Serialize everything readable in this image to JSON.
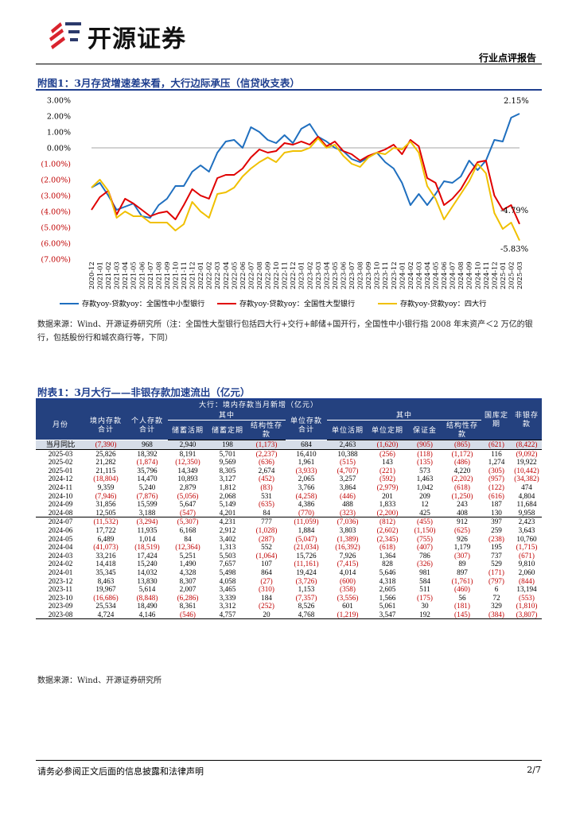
{
  "header": {
    "brand": "开源证券",
    "report_type": "行业点评报告"
  },
  "figure": {
    "title": "附图1：3月存贷增速差来看，大行边际承压（信贷收支表）",
    "source": "数据来源：Wind、开源证券研究所（注：全国性大型银行包括四大行+交行+邮储+国开行，全国性中小银行指 2008 年末资产＜2 万亿的银行，包括股份行和城农商行等，下同）"
  },
  "chart_data": {
    "type": "line",
    "x": [
      "2020-12",
      "2021-01",
      "2021-02",
      "2021-03",
      "2021-04",
      "2021-05",
      "2021-06",
      "2021-07",
      "2021-08",
      "2021-09",
      "2021-10",
      "2021-11",
      "2021-12",
      "2022-01",
      "2022-02",
      "2022-03",
      "2022-04",
      "2022-05",
      "2022-06",
      "2022-07",
      "2022-08",
      "2022-09",
      "2022-10",
      "2022-11",
      "2022-12",
      "2023-01",
      "2023-02",
      "2023-03",
      "2023-04",
      "2023-05",
      "2023-06",
      "2023-07",
      "2023-08",
      "2023-09",
      "2023-10",
      "2023-11",
      "2023-12",
      "2024-01",
      "2024-02",
      "2024-03",
      "2024-04",
      "2024-05",
      "2024-06",
      "2024-07",
      "2024-08",
      "2024-09",
      "2024-10",
      "2024-11",
      "2024-12",
      "2025-01",
      "2025-02",
      "2025-03"
    ],
    "ylim": [
      -7,
      3
    ],
    "yticks": [
      "3.00%",
      "2.00%",
      "1.00%",
      "0.00%",
      "(1.00%)",
      "(2.00%)",
      "(3.00%)",
      "(4.00%)",
      "(5.00%)",
      "(6.00%)",
      "(7.00%)"
    ],
    "series": [
      {
        "name": "存款yoy-贷款yoy：全国性中小型银行",
        "color": "#1f6fbf",
        "values": [
          -2.5,
          -2.2,
          -3.0,
          -3.9,
          -3.7,
          -3.5,
          -4.3,
          -4.4,
          -3.6,
          -3.2,
          -2.4,
          -2.4,
          -1.5,
          -1.1,
          -1.5,
          -0.3,
          0.4,
          0.5,
          0.0,
          1.3,
          1.0,
          0.5,
          0.3,
          0.8,
          0.3,
          1.2,
          1.5,
          0.7,
          0.4,
          0.0,
          -0.2,
          -0.7,
          -0.9,
          -0.6,
          -0.3,
          -0.9,
          -1.3,
          -2.2,
          -3.6,
          -2.9,
          -3.6,
          -2.9,
          -2.1,
          -2.2,
          -1.8,
          -0.8,
          -1.4,
          -0.8,
          0.5,
          0.4,
          1.9,
          2.15
        ]
      },
      {
        "name": "存款yoy-贷款yoy：全国性大型银行",
        "color": "#e00000",
        "values": [
          -3.9,
          -3.1,
          -2.7,
          -4.2,
          -3.2,
          -3.5,
          -3.9,
          -4.3,
          -4.1,
          -4.0,
          -4.5,
          -3.6,
          -2.6,
          -3.0,
          -3.2,
          -1.9,
          -1.7,
          -1.7,
          -1.3,
          -0.6,
          -0.1,
          -0.3,
          -0.2,
          0.3,
          0.2,
          0.4,
          0.2,
          0.7,
          0.1,
          0.4,
          -0.2,
          -0.4,
          -0.8,
          -0.5,
          -0.3,
          -0.1,
          0.2,
          -0.4,
          0.5,
          0.1,
          -1.9,
          -2.2,
          -3.6,
          -3.2,
          -2.6,
          -1.7,
          -0.9,
          -0.8,
          -3.0,
          -3.9,
          -3.6,
          -4.79
        ]
      },
      {
        "name": "存款yoy-贷款yoy：四大行",
        "color": "#f0c000",
        "values": [
          -2.5,
          -2.0,
          -2.7,
          -4.4,
          -4.0,
          -4.3,
          -4.3,
          -4.7,
          -4.7,
          -4.7,
          -5.2,
          -4.8,
          -3.4,
          -4.0,
          -4.4,
          -2.9,
          -2.8,
          -2.5,
          -1.8,
          -1.3,
          -0.9,
          -0.6,
          -0.9,
          -0.3,
          -0.2,
          -0.2,
          0.0,
          0.6,
          0.0,
          0.2,
          -0.5,
          -1.0,
          -1.2,
          -0.6,
          -0.3,
          -0.4,
          0.0,
          -0.1,
          0.4,
          -0.3,
          -2.4,
          -3.2,
          -4.5,
          -3.7,
          -2.9,
          -2.1,
          -1.0,
          -1.6,
          -4.1,
          -5.1,
          -4.7,
          -5.83
        ]
      }
    ],
    "annotations": [
      "2.15%",
      "-4.79%",
      "-5.83%"
    ]
  },
  "table": {
    "title": "附表1：3月大行——非银存款加速流出（亿元）",
    "super_header": "大行：境内存款当月新增（亿元）",
    "sub_header_1": "其中",
    "sub_header_2": "其中",
    "col_month": "月份",
    "col_domestic": "境内存款合计",
    "col_personal": "个人存款合计",
    "col_savings_demand": "储蓄活期",
    "col_savings_fixed": "储蓄定期",
    "col_structured_p": "结构性存款",
    "col_unit": "单位存款合计",
    "col_unit_demand": "单位活期",
    "col_unit_fixed": "单位定期",
    "col_margin": "保证金",
    "col_structured_u": "结构性存款",
    "col_treasury": "国库定期",
    "col_nonbank": "非银存款",
    "yoy": [
      "当月同比",
      "(7,390)",
      "968",
      "2,940",
      "198",
      "(1,173)",
      "684",
      "2,463",
      "(1,620)",
      "(905)",
      "(865)",
      "(621)",
      "(8,422)"
    ],
    "rows": [
      [
        "2025-03",
        "25,826",
        "18,392",
        "8,191",
        "5,701",
        "(2,237)",
        "16,410",
        "10,388",
        "(256)",
        "(118)",
        "(1,172)",
        "116",
        "(9,092)"
      ],
      [
        "2025-02",
        "21,282",
        "(1,874)",
        "(12,350)",
        "9,569",
        "(636)",
        "1,961",
        "(515)",
        "143",
        "(135)",
        "(486)",
        "1,274",
        "19,922"
      ],
      [
        "2025-01",
        "21,115",
        "35,796",
        "14,349",
        "8,305",
        "2,674",
        "(3,933)",
        "(4,707)",
        "(221)",
        "573",
        "4,220",
        "(305)",
        "(10,442)"
      ],
      [
        "2024-12",
        "(18,804)",
        "14,470",
        "10,893",
        "3,127",
        "(452)",
        "2,065",
        "3,257",
        "(592)",
        "1,463",
        "(2,202)",
        "(957)",
        "(34,382)"
      ],
      [
        "2024-11",
        "9,359",
        "5,240",
        "2,879",
        "1,812",
        "(83)",
        "3,766",
        "3,864",
        "(2,979)",
        "1,042",
        "(618)",
        "(122)",
        "474"
      ],
      [
        "2024-10",
        "(7,946)",
        "(7,876)",
        "(5,056)",
        "2,068",
        "531",
        "(4,258)",
        "(446)",
        "201",
        "209",
        "(1,250)",
        "(616)",
        "4,804"
      ],
      [
        "2024-09",
        "31,856",
        "15,599",
        "5,647",
        "5,149",
        "(635)",
        "4,386",
        "488",
        "1,833",
        "12",
        "243",
        "187",
        "11,684"
      ],
      [
        "2024-08",
        "12,505",
        "3,188",
        "(547)",
        "4,201",
        "84",
        "(770)",
        "(323)",
        "(2,200)",
        "425",
        "408",
        "130",
        "9,958"
      ],
      [
        "2024-07",
        "(11,532)",
        "(3,294)",
        "(5,307)",
        "4,231",
        "777",
        "(11,059)",
        "(7,036)",
        "(812)",
        "(455)",
        "912",
        "397",
        "2,423"
      ],
      [
        "2024-06",
        "17,722",
        "11,935",
        "6,168",
        "2,912",
        "(1,028)",
        "1,884",
        "3,803",
        "(2,602)",
        "(1,150)",
        "(625)",
        "259",
        "3,643"
      ],
      [
        "2024-05",
        "6,489",
        "1,014",
        "84",
        "3,402",
        "(287)",
        "(5,047)",
        "(1,389)",
        "(2,345)",
        "(755)",
        "926",
        "(238)",
        "10,760"
      ],
      [
        "2024-04",
        "(41,073)",
        "(18,519)",
        "(12,364)",
        "1,313",
        "552",
        "(21,034)",
        "(16,392)",
        "(618)",
        "(407)",
        "1,179",
        "195",
        "(1,715)"
      ],
      [
        "2024-03",
        "33,216",
        "17,424",
        "5,251",
        "5,503",
        "(1,064)",
        "15,726",
        "7,926",
        "1,364",
        "786",
        "(307)",
        "737",
        "(671)"
      ],
      [
        "2024-02",
        "14,418",
        "15,240",
        "1,490",
        "7,657",
        "107",
        "(11,161)",
        "(7,415)",
        "828",
        "(326)",
        "89",
        "529",
        "9,810"
      ],
      [
        "2024-01",
        "35,345",
        "14,032",
        "4,328",
        "5,498",
        "864",
        "19,424",
        "4,014",
        "5,646",
        "981",
        "897",
        "(171)",
        "2,060"
      ],
      [
        "2023-12",
        "8,463",
        "13,830",
        "8,307",
        "4,058",
        "(27)",
        "(3,726)",
        "(600)",
        "4,318",
        "584",
        "(1,761)",
        "(797)",
        "(844)"
      ],
      [
        "2023-11",
        "19,967",
        "5,614",
        "2,007",
        "3,465",
        "(310)",
        "1,153",
        "(358)",
        "2,605",
        "511",
        "(460)",
        "6",
        "13,194"
      ],
      [
        "2023-10",
        "(16,686)",
        "(8,848)",
        "(6,286)",
        "3,339",
        "184",
        "(7,357)",
        "(3,556)",
        "1,566",
        "(175)",
        "56",
        "72",
        "(553)"
      ],
      [
        "2023-09",
        "25,534",
        "18,490",
        "8,361",
        "3,312",
        "(252)",
        "8,526",
        "601",
        "5,061",
        "30",
        "(181)",
        "329",
        "(1,810)"
      ],
      [
        "2023-08",
        "4,724",
        "4,146",
        "(546)",
        "4,757",
        "20",
        "4,768",
        "(1,219)",
        "3,547",
        "192",
        "(145)",
        "(384)",
        "(3,807)"
      ]
    ],
    "source": "数据来源：Wind、开源证券研究所"
  },
  "footer": {
    "disclaimer": "请务必参阅正文后面的信息披露和法律声明",
    "page": "2/7"
  }
}
